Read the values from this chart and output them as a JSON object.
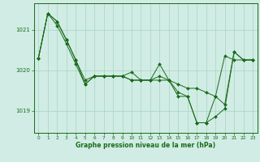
{
  "title": "",
  "xlabel": "Graphe pression niveau de la mer (hPa)",
  "background_color": "#d0ece4",
  "grid_color": "#a8d4c4",
  "line_color": "#1a6b1a",
  "marker_color": "#1a6b1a",
  "ylim": [
    1018.45,
    1021.65
  ],
  "xlim": [
    -0.5,
    23.5
  ],
  "yticks": [
    1019,
    1020,
    1021
  ],
  "xticks": [
    0,
    1,
    2,
    3,
    4,
    5,
    6,
    7,
    8,
    9,
    10,
    11,
    12,
    13,
    14,
    15,
    16,
    17,
    18,
    19,
    20,
    21,
    22,
    23
  ],
  "series": [
    [
      1020.3,
      1021.4,
      1021.2,
      1020.75,
      1020.25,
      1019.75,
      1019.85,
      1019.85,
      1019.85,
      1019.85,
      1019.75,
      1019.75,
      1019.75,
      1019.75,
      1019.75,
      1019.65,
      1019.55,
      1019.55,
      1019.45,
      1019.35,
      1020.35,
      1020.25,
      1020.25,
      1020.25
    ],
    [
      1020.3,
      1021.4,
      1021.2,
      1020.75,
      1020.25,
      1019.65,
      1019.85,
      1019.85,
      1019.85,
      1019.85,
      1019.95,
      1019.75,
      1019.75,
      1020.15,
      1019.75,
      1019.45,
      1019.35,
      1018.7,
      1018.7,
      1018.85,
      1019.05,
      1020.45,
      1020.25,
      1020.25
    ],
    [
      1020.3,
      1021.4,
      1021.1,
      1020.65,
      1020.15,
      1019.65,
      1019.85,
      1019.85,
      1019.85,
      1019.85,
      1019.75,
      1019.75,
      1019.75,
      1019.85,
      1019.75,
      1019.35,
      1019.35,
      1018.7,
      1018.7,
      1019.35,
      1019.15,
      1020.45,
      1020.25,
      1020.25
    ]
  ]
}
